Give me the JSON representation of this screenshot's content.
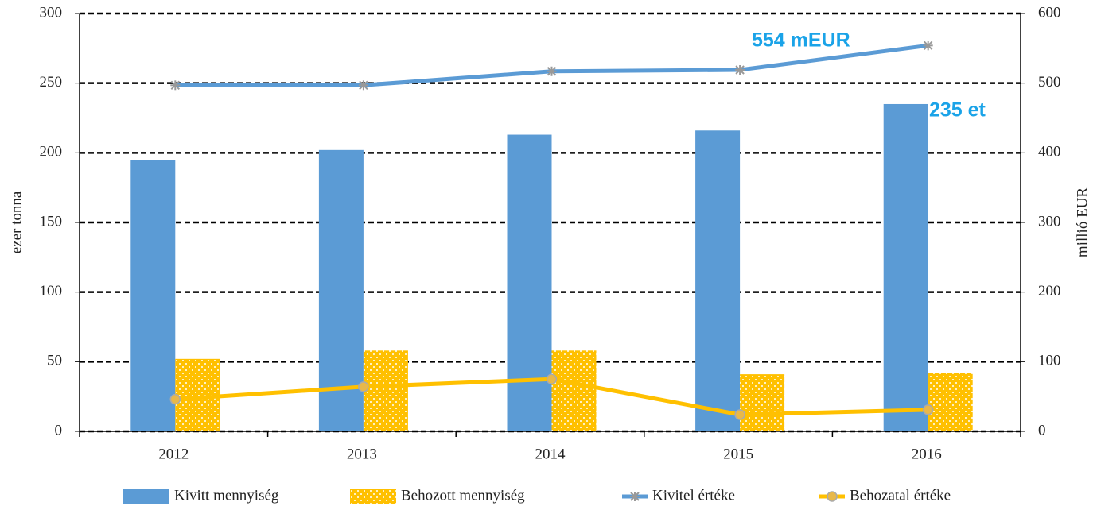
{
  "chart_data": {
    "type": "bar",
    "categories": [
      "2012",
      "2013",
      "2014",
      "2015",
      "2016"
    ],
    "ylabel": "ezer tonna",
    "y2label": "millió EUR",
    "ylim": [
      0,
      300
    ],
    "yticks": [
      0,
      50,
      100,
      150,
      200,
      250,
      300
    ],
    "y2lim": [
      0,
      600
    ],
    "y2ticks": [
      0,
      100,
      200,
      300,
      400,
      500,
      600
    ],
    "grid": true,
    "legend": "bottom",
    "series": [
      {
        "name": "Kivitt mennyiség",
        "type": "bar",
        "color": "#5b9bd5",
        "values": [
          195,
          202,
          213,
          216,
          235
        ]
      },
      {
        "name": "Behozott mennyiség",
        "type": "bar",
        "color": "#ffc000",
        "pattern": "dots",
        "values": [
          52,
          58,
          58,
          41,
          42
        ]
      },
      {
        "name": "Kivitel értéke",
        "type": "line",
        "axis": "y2",
        "color": "#5b9bd5",
        "marker": "x",
        "values": [
          497,
          497,
          517,
          519,
          554
        ]
      },
      {
        "name": "Behozatal értéke",
        "type": "line",
        "axis": "y2",
        "color": "#ffc000",
        "marker": "circle",
        "values": [
          46,
          64,
          75,
          24,
          31
        ]
      }
    ],
    "annotations": [
      "554 mEUR",
      "235 et"
    ]
  }
}
